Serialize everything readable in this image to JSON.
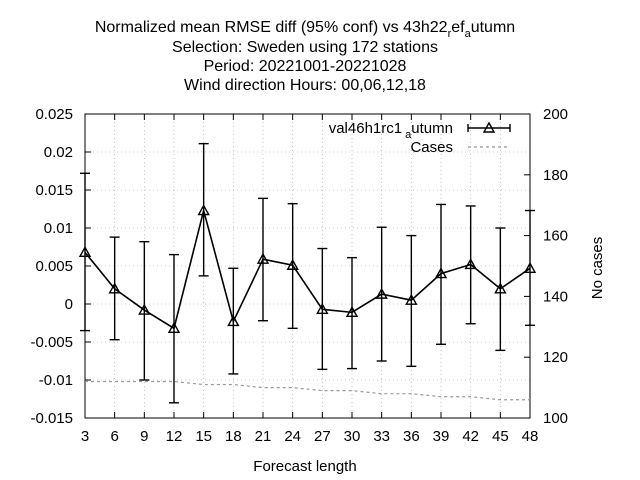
{
  "chart_data": {
    "type": "line",
    "title_lines": [
      "Normalized mean RMSE diff (95% conf) vs 43h22",
      "Selection: Sweden using   172 stations",
      "Period: 20221001-20221028",
      "Wind direction   Hours:  00,06,12,18"
    ],
    "title_ref": {
      "pre": "r",
      "base": "ef",
      "sub": "a",
      "post": "utumn"
    },
    "xlabel": "Forecast length",
    "ylabel": "",
    "y2label": "No cases",
    "x": [
      3,
      6,
      9,
      12,
      15,
      18,
      21,
      24,
      27,
      30,
      33,
      36,
      39,
      42,
      45,
      48
    ],
    "xlim": [
      3,
      48
    ],
    "ylim": [
      -0.015,
      0.025
    ],
    "y2lim": [
      100,
      200
    ],
    "x_ticks": [
      "3",
      "6",
      "9",
      "12",
      "15",
      "18",
      "21",
      "24",
      "27",
      "30",
      "33",
      "36",
      "39",
      "42",
      "45",
      "48"
    ],
    "y_ticks": [
      {
        "v": 0.025,
        "label": "0.025"
      },
      {
        "v": 0.02,
        "label": "0.02"
      },
      {
        "v": 0.015,
        "label": "0.015"
      },
      {
        "v": 0.01,
        "label": "0.01"
      },
      {
        "v": 0.005,
        "label": "0.005"
      },
      {
        "v": 0,
        "label": "0"
      },
      {
        "v": -0.005,
        "label": "-0.005"
      },
      {
        "v": -0.01,
        "label": "-0.01"
      },
      {
        "v": -0.015,
        "label": "-0.015"
      }
    ],
    "y2_ticks": [
      {
        "v": 200,
        "label": "200"
      },
      {
        "v": 180,
        "label": "180"
      },
      {
        "v": 160,
        "label": "160"
      },
      {
        "v": 140,
        "label": "140"
      },
      {
        "v": 120,
        "label": "120"
      },
      {
        "v": 100,
        "label": "100"
      }
    ],
    "legend_position": "top-right",
    "series": [
      {
        "name": "val46h1rc1",
        "name_sub": "a",
        "name_post": "utumn",
        "axis": "left",
        "style": "line-errorbars-triangle",
        "color": "#000000",
        "values": [
          0.0068,
          0.002,
          -0.0008,
          -0.0032,
          0.0123,
          -0.0023,
          0.0059,
          0.0051,
          -0.0007,
          -0.0011,
          0.0013,
          0.0005,
          0.004,
          0.0052,
          0.002,
          0.0047
        ],
        "err_low": [
          -0.0035,
          -0.0047,
          -0.01,
          -0.013,
          0.0037,
          -0.0092,
          -0.0022,
          -0.0032,
          -0.0086,
          -0.0085,
          -0.0075,
          -0.0082,
          -0.0053,
          -0.0026,
          -0.0061,
          -0.0028
        ],
        "err_high": [
          0.0172,
          0.0088,
          0.0082,
          0.0065,
          0.0211,
          0.0047,
          0.0139,
          0.0132,
          0.0073,
          0.0061,
          0.0101,
          0.009,
          0.0131,
          0.0129,
          0.01,
          0.0123
        ]
      },
      {
        "name": "Cases",
        "axis": "right",
        "style": "dashed",
        "color": "#999999",
        "values": [
          112,
          112,
          112,
          112,
          111,
          111,
          110,
          110,
          109,
          109,
          108,
          108,
          107,
          107,
          106,
          106
        ]
      }
    ]
  }
}
